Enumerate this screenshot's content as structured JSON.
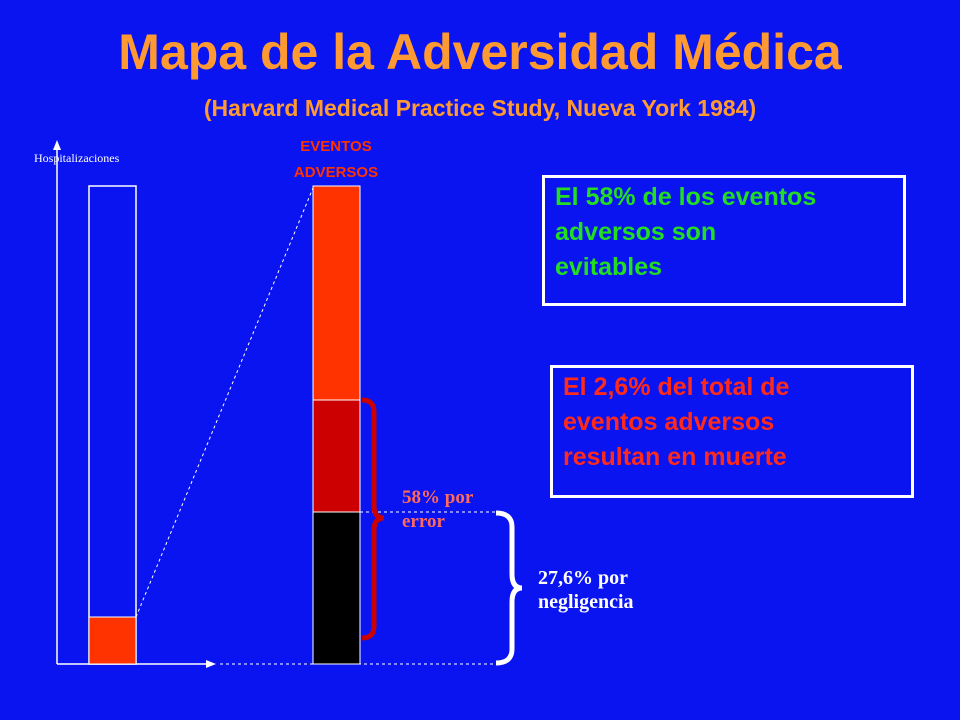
{
  "title": "Mapa de la Adversidad Médica",
  "subtitle": "(Harvard Medical Practice Study, Nueva York 1984)",
  "axis_label": "Hospitalizaciones",
  "events_label_line1": "EVENTOS",
  "events_label_line2": "ADVERSOS",
  "box_preventable": {
    "line1": "El 58% de los eventos",
    "line2": "adversos son",
    "line3": "evitables"
  },
  "box_death": {
    "line1": "El 2,6% del total de",
    "line2": "eventos adversos",
    "line3": "resultan en muerte"
  },
  "error_label": {
    "line1": "58% por",
    "line2": "error"
  },
  "negligence_label": {
    "line1": "27,6% por",
    "line2": "negligencia"
  },
  "colors": {
    "background": "#0a14f0",
    "title": "#ff9a33",
    "adverse_events": "#ff3300",
    "error": "#cc0000",
    "negligence": "#000000",
    "green_text": "#22dd22",
    "red_text": "#ff2a1a",
    "error_label": "#ff6a5a",
    "white": "#ffffff"
  }
}
